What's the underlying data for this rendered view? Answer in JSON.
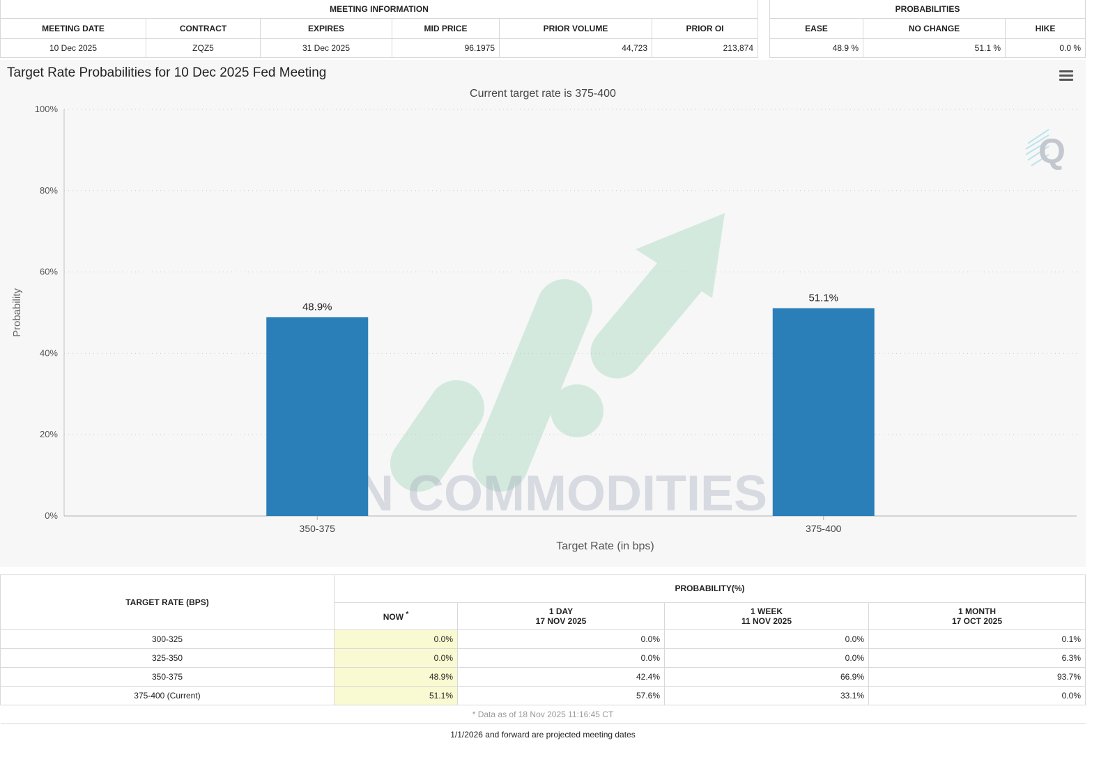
{
  "meeting_info": {
    "title": "MEETING INFORMATION",
    "headers": [
      "MEETING DATE",
      "CONTRACT",
      "EXPIRES",
      "MID PRICE",
      "PRIOR VOLUME",
      "PRIOR OI"
    ],
    "row": [
      "10 Dec 2025",
      "ZQZ5",
      "31 Dec 2025",
      "96.1975",
      "44,723",
      "213,874"
    ]
  },
  "probabilities": {
    "title": "PROBABILITIES",
    "headers": [
      "EASE",
      "NO CHANGE",
      "HIKE"
    ],
    "row": [
      "48.9 %",
      "51.1 %",
      "0.0 %"
    ]
  },
  "chart": {
    "menu_icon": "hamburger-menu-icon",
    "watermark_text": "VN COMMODITIES",
    "logo_letter": "Q"
  },
  "chart_data": {
    "type": "bar",
    "title": "Target Rate Probabilities for 10 Dec 2025 Fed Meeting",
    "subtitle": "Current target rate is 375-400",
    "categories": [
      "350-375",
      "375-400"
    ],
    "values": [
      48.9,
      51.1
    ],
    "data_labels": [
      "48.9%",
      "51.1%"
    ],
    "xlabel": "Target Rate (in bps)",
    "ylabel": "Probability",
    "ylim": [
      0,
      100
    ],
    "yticks": [
      0,
      20,
      40,
      60,
      80,
      100
    ],
    "ytick_labels": [
      "0%",
      "20%",
      "40%",
      "60%",
      "80%",
      "100%"
    ],
    "grid": true,
    "bar_color": "#2b7fb8"
  },
  "history": {
    "target_rate_header": "TARGET RATE (BPS)",
    "probability_header": "PROBABILITY(%)",
    "columns": [
      {
        "label": "NOW",
        "mark": "*",
        "date": ""
      },
      {
        "label": "1 DAY",
        "date": "17 NOV 2025"
      },
      {
        "label": "1 WEEK",
        "date": "11 NOV 2025"
      },
      {
        "label": "1 MONTH",
        "date": "17 OCT 2025"
      }
    ],
    "rows": [
      {
        "rate": "300-325",
        "values": [
          "0.0%",
          "0.0%",
          "0.0%",
          "0.1%"
        ]
      },
      {
        "rate": "325-350",
        "values": [
          "0.0%",
          "0.0%",
          "0.0%",
          "6.3%"
        ]
      },
      {
        "rate": "350-375",
        "values": [
          "48.9%",
          "42.4%",
          "66.9%",
          "93.7%"
        ]
      },
      {
        "rate": "375-400 (Current)",
        "values": [
          "51.1%",
          "57.6%",
          "33.1%",
          "0.0%"
        ]
      }
    ],
    "data_note": "* Data as of 18 Nov 2025 11:16:45 CT"
  },
  "footer_note": "1/1/2026 and forward are projected meeting dates"
}
